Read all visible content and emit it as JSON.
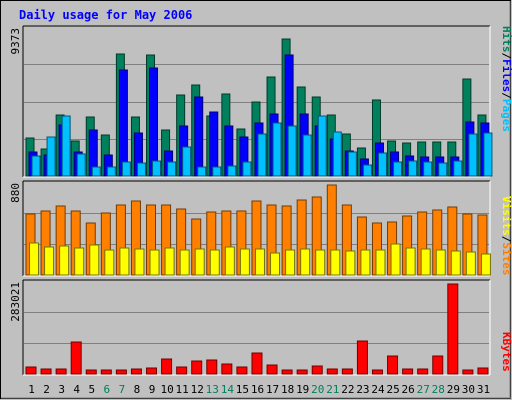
{
  "title": "Daily usage for May 2006",
  "colors": {
    "hits": "#00805c",
    "files": "#0000ff",
    "pages": "#00c0ff",
    "visits": "#ffff00",
    "sites": "#ff8000",
    "kbytes": "#ff0000",
    "title": "#0000ff",
    "weekend_day": "#00805c",
    "weekday": "#000000",
    "panel_bg": "#c0c0c0"
  },
  "legend": {
    "top": [
      {
        "text": "Hits",
        "color_key": "hits"
      },
      {
        "text": "/",
        "color_key": "weekday"
      },
      {
        "text": "Files",
        "color_key": "files"
      },
      {
        "text": "/",
        "color_key": "weekday"
      },
      {
        "text": "Pages",
        "color_key": "pages"
      }
    ],
    "middle": [
      {
        "text": "Visits",
        "color_key": "visits"
      },
      {
        "text": "/",
        "color_key": "weekday"
      },
      {
        "text": "Sites",
        "color_key": "sites"
      }
    ],
    "bottom": [
      {
        "text": "KBytes",
        "color_key": "kbytes"
      }
    ]
  },
  "chart_data": {
    "type": "bar",
    "title": "Daily usage for May 2006",
    "categories": [
      "1",
      "2",
      "3",
      "4",
      "5",
      "6",
      "7",
      "8",
      "9",
      "10",
      "11",
      "12",
      "13",
      "14",
      "15",
      "16",
      "17",
      "18",
      "19",
      "20",
      "21",
      "22",
      "23",
      "24",
      "25",
      "26",
      "27",
      "28",
      "29",
      "30",
      "31"
    ],
    "weekend_days": [
      "6",
      "7",
      "13",
      "14",
      "20",
      "21",
      "27",
      "28"
    ],
    "panels": [
      {
        "name": "hits-files-pages",
        "ymax_label": "9373",
        "ymax": 9373,
        "series": [
          {
            "name": "Hits",
            "color_key": "hits",
            "values": [
              2470,
              1760,
              3930,
              2310,
              3810,
              2650,
              7830,
              3810,
              7770,
              2990,
              5250,
              5880,
              3900,
              5300,
              3040,
              4790,
              6380,
              8790,
              5720,
              5100,
              3980,
              2770,
              1880,
              4920,
              2280,
              2180,
              2210,
              2240,
              2210,
              6220,
              3930
            ]
          },
          {
            "name": "Files",
            "color_key": "files",
            "values": [
              1620,
              1410,
              3290,
              1590,
              2990,
              1400,
              6850,
              2780,
              6920,
              1680,
              3260,
              5100,
              4160,
              3240,
              2550,
              3430,
              3990,
              7770,
              4000,
              3230,
              2440,
              1670,
              1170,
              2180,
              1620,
              1340,
              1300,
              1290,
              1300,
              3530,
              3470
            ]
          },
          {
            "name": "Pages",
            "color_key": "pages",
            "values": [
              1330,
              2570,
              3910,
              1470,
              610,
              610,
              950,
              880,
              1000,
              940,
              1920,
              610,
              630,
              670,
              970,
              2760,
              3470,
              3240,
              2660,
              3860,
              2880,
              1620,
              760,
              1540,
              930,
              1010,
              950,
              920,
              1010,
              2770,
              2800
            ]
          }
        ]
      },
      {
        "name": "visits-sites",
        "ymax_label": "880",
        "ymax": 880,
        "series": [
          {
            "name": "Sites",
            "color_key": "sites",
            "values": [
              600,
              625,
              680,
              630,
              510,
              605,
              690,
              730,
              690,
              690,
              645,
              555,
              620,
              625,
              630,
              730,
              690,
              680,
              735,
              760,
              880,
              690,
              575,
              510,
              520,
              585,
              615,
              640,
              665,
              595,
              590
            ]
          },
          {
            "name": "Visits",
            "color_key": "visits",
            "values": [
              315,
              285,
              290,
              270,
              300,
              255,
              270,
              265,
              255,
              270,
              255,
              265,
              255,
              280,
              265,
              265,
              225,
              250,
              265,
              255,
              250,
              240,
              255,
              255,
              305,
              270,
              260,
              250,
              245,
              235,
              210
            ]
          }
        ]
      },
      {
        "name": "kbytes",
        "ymax_label": "283021",
        "ymax": 283021,
        "series": [
          {
            "name": "KBytes",
            "color_key": "kbytes",
            "values": [
              26000,
              18000,
              19000,
              102000,
              14000,
              16000,
              15000,
              19000,
              23000,
              49000,
              24000,
              44000,
              46000,
              35000,
              24000,
              68000,
              32000,
              14000,
              14000,
              29000,
              18000,
              19000,
              105000,
              15000,
              59000,
              20000,
              20000,
              59000,
              283021,
              14000,
              21000
            ]
          }
        ]
      }
    ]
  }
}
